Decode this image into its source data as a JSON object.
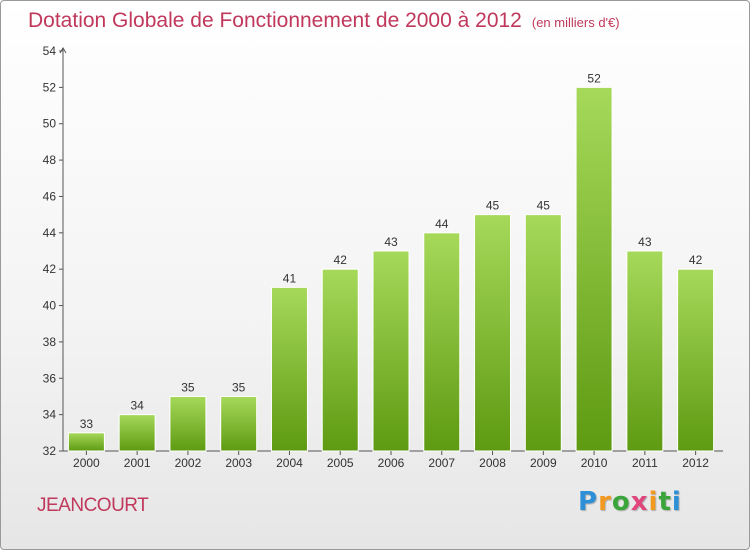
{
  "header": {
    "title": "Dotation Globale de Fonctionnement de 2000 à 2012",
    "subtitle": "(en milliers d'€)"
  },
  "footer": {
    "town": "JEANCOURT",
    "logo_text": "Proxiti"
  },
  "colors": {
    "title": "#c0385b",
    "bar_top": "#a6d95a",
    "bar_bottom": "#5e9a12",
    "axis": "#555555"
  },
  "chart_data": {
    "type": "bar",
    "categories": [
      "2000",
      "2001",
      "2002",
      "2003",
      "2004",
      "2005",
      "2006",
      "2007",
      "2008",
      "2009",
      "2010",
      "2011",
      "2012"
    ],
    "values": [
      33,
      34,
      35,
      35,
      41,
      42,
      43,
      44,
      45,
      45,
      52,
      43,
      42
    ],
    "title": "Dotation Globale de Fonctionnement de 2000 à 2012",
    "subtitle": "(en milliers d'€)",
    "xlabel": "",
    "ylabel": "",
    "ylim": [
      32,
      54
    ],
    "yticks": [
      32,
      34,
      36,
      38,
      40,
      42,
      44,
      46,
      48,
      50,
      52,
      54
    ],
    "grid": false,
    "data_labels": true
  }
}
